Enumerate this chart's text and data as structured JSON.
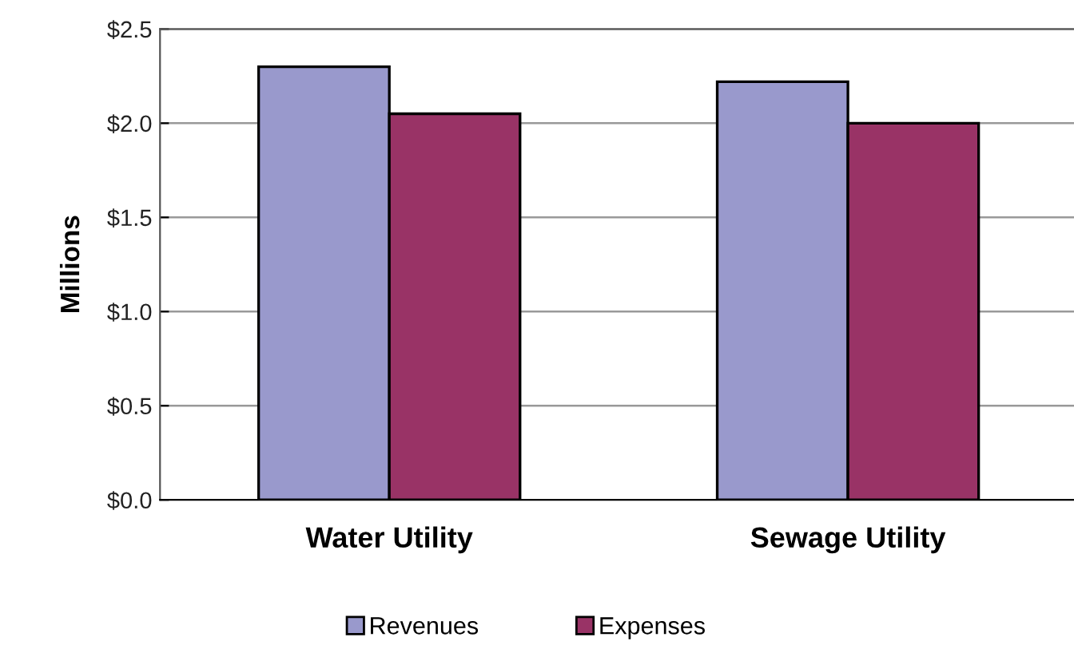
{
  "chart_data": {
    "type": "bar",
    "ylabel": "Millions",
    "categories": [
      "Water Utility",
      "Sewage Utility"
    ],
    "series": [
      {
        "name": "Revenues",
        "color": "#9999cc",
        "values": [
          2.3,
          2.22
        ]
      },
      {
        "name": "Expenses",
        "color": "#993366",
        "values": [
          2.05,
          2.0
        ]
      }
    ],
    "ylim": [
      0,
      2.5
    ],
    "yticks": [
      {
        "value": 0,
        "label": "$0.0"
      },
      {
        "value": 0.5,
        "label": "$0.5"
      },
      {
        "value": 1.0,
        "label": "$1.0"
      },
      {
        "value": 1.5,
        "label": "$1.5"
      },
      {
        "value": 2.0,
        "label": "$2.0"
      },
      {
        "value": 2.5,
        "label": "$2.5"
      }
    ],
    "grid": "y",
    "legend": "bottom"
  }
}
